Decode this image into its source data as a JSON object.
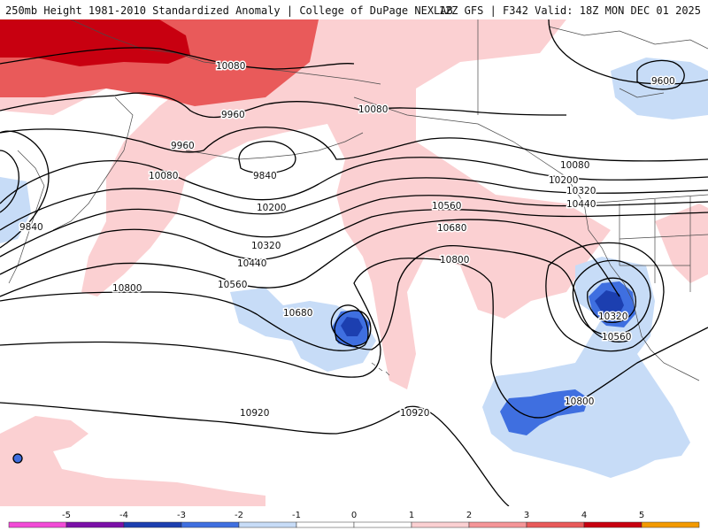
{
  "header": {
    "title_left": "250mb Height 1981-2010 Standardized Anomaly | College of DuPage NEXLAB",
    "title_right": "12Z GFS | F342 Valid: 18Z MON DEC 01 2025"
  },
  "colors": {
    "neg5": "#f24bd7",
    "neg4": "#7b0fa8",
    "neg3": "#1c3fb0",
    "neg2": "#3f6fe0",
    "neg1": "#c7dcf7",
    "zero": "#ffffff",
    "pos1": "#fbd0d2",
    "pos2": "#f59598",
    "pos3": "#e95a5a",
    "pos4": "#c80010",
    "pos5": "#f39a00",
    "contour": "#000000",
    "coast": "#4a4a4a"
  },
  "contour_labels": [
    {
      "id": "l10080a",
      "text": "10080"
    },
    {
      "id": "l9960a",
      "text": "9960"
    },
    {
      "id": "l9960b",
      "text": "9960"
    },
    {
      "id": "l9840a",
      "text": "9840"
    },
    {
      "id": "l10080b",
      "text": "10080"
    },
    {
      "id": "l10080c",
      "text": "10080"
    },
    {
      "id": "l10200a",
      "text": "10200"
    },
    {
      "id": "l10320a",
      "text": "10320"
    },
    {
      "id": "l10440a",
      "text": "10440"
    },
    {
      "id": "l10560a",
      "text": "10560"
    },
    {
      "id": "l10800a",
      "text": "10800"
    },
    {
      "id": "l10680a",
      "text": "10680"
    },
    {
      "id": "l9840b",
      "text": "9840"
    },
    {
      "id": "l10560b",
      "text": "10560"
    },
    {
      "id": "l10680b",
      "text": "10680"
    },
    {
      "id": "l10800b",
      "text": "10800"
    },
    {
      "id": "l10080d",
      "text": "10080"
    },
    {
      "id": "l10200b",
      "text": "10200"
    },
    {
      "id": "l10320b",
      "text": "10320"
    },
    {
      "id": "l10440b",
      "text": "10440"
    },
    {
      "id": "l9600",
      "text": "9600"
    },
    {
      "id": "l10320c",
      "text": "10320"
    },
    {
      "id": "l10560c",
      "text": "10560"
    },
    {
      "id": "l10800c",
      "text": "10800"
    },
    {
      "id": "l10920a",
      "text": "10920"
    },
    {
      "id": "l10920b",
      "text": "10920"
    }
  ],
  "colorbar": {
    "ticks": [
      "-5",
      "-4",
      "-3",
      "-2",
      "-1",
      "0",
      "1",
      "2",
      "3",
      "4",
      "5"
    ]
  }
}
